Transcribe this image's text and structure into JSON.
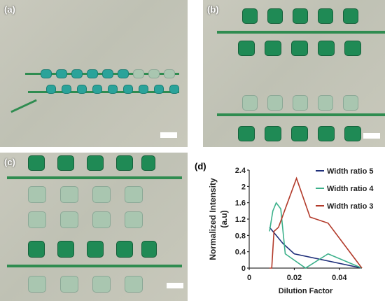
{
  "panels": {
    "a": {
      "label": "(a)"
    },
    "b": {
      "label": "(b)"
    },
    "c": {
      "label": "(c)"
    },
    "d": {
      "label": "(d)"
    }
  },
  "colors": {
    "series1": "#1f2f7a",
    "series2": "#3bb08a",
    "series3": "#b23a2a"
  },
  "chart_data": {
    "type": "line",
    "xlabel": "Dilution Factor",
    "ylabel": "Normalized Intensity\n(a.u)",
    "xlim": [
      0,
      0.05
    ],
    "ylim": [
      0,
      2.4
    ],
    "xticks": [
      "0",
      "0.02",
      "0.04"
    ],
    "yticks": [
      "0",
      "0.4",
      "0.8",
      "1.2",
      "1.6",
      "2",
      "2.4"
    ],
    "legend_position": "right",
    "series": [
      {
        "name": "Width ratio 5",
        "color": "#1f2f7a",
        "x": [
          0.009,
          0.012,
          0.015,
          0.02,
          0.05
        ],
        "y": [
          1.0,
          0.8,
          0.6,
          0.35,
          0.0
        ]
      },
      {
        "name": "Width ratio 4",
        "color": "#3bb08a",
        "x": [
          0.009,
          0.0105,
          0.012,
          0.014,
          0.016,
          0.025,
          0.035,
          0.05
        ],
        "y": [
          0.9,
          1.4,
          1.6,
          1.45,
          0.35,
          0.0,
          0.35,
          0.0
        ]
      },
      {
        "name": "Width ratio 3",
        "color": "#b23a2a",
        "x": [
          0.009,
          0.01,
          0.011,
          0.013,
          0.017,
          0.021,
          0.027,
          0.035,
          0.05
        ],
        "y": [
          0.0,
          0.0,
          0.9,
          1.0,
          1.6,
          2.2,
          1.25,
          1.1,
          0.0
        ]
      }
    ]
  }
}
